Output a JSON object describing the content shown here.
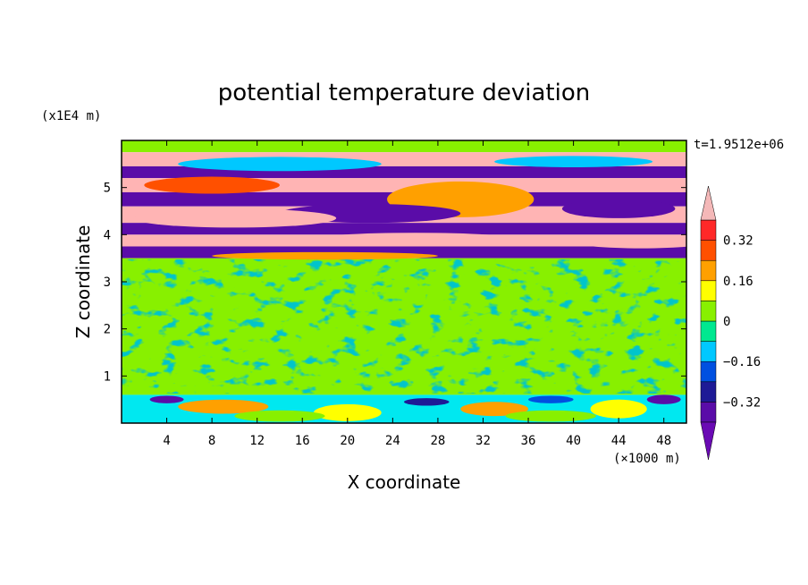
{
  "chart_data": {
    "type": "heatmap",
    "title": "potential temperature deviation",
    "xlabel": "X coordinate",
    "ylabel": "Z coordinate",
    "x_unit": "(×1000 m)",
    "y_unit": "(x1E4 m)",
    "time_label": "t=1.9512e+06",
    "xlim": [
      0,
      50
    ],
    "ylim": [
      0,
      6
    ],
    "x_ticks": [
      4,
      8,
      12,
      16,
      20,
      24,
      28,
      32,
      36,
      40,
      44,
      48
    ],
    "y_ticks": [
      1,
      2,
      3,
      4,
      5
    ],
    "colorbar": {
      "levels": [
        -0.4,
        -0.32,
        -0.24,
        -0.16,
        -0.08,
        0,
        0.08,
        0.16,
        0.24,
        0.32,
        0.4
      ],
      "labeled_ticks": [
        -0.32,
        -0.16,
        0,
        0.16,
        0.32
      ],
      "labels": [
        "−0.32",
        "−0.16",
        "0",
        "0.16",
        "0.32"
      ],
      "colors": [
        "#5a0ca8",
        "#1e1a96",
        "#0050e0",
        "#00c8ff",
        "#00e890",
        "#88f000",
        "#ffff00",
        "#ffa000",
        "#ff5000",
        "#ff2828",
        "#ffb4b4"
      ],
      "extend_low_color": "#6a0ab4",
      "extend_high_color": "#f4b8b8"
    },
    "bands": [
      {
        "y": [
          5.75,
          6.0
        ],
        "level": 0.0,
        "color": "#88f000"
      },
      {
        "y": [
          5.45,
          5.75
        ],
        "level": 0.4,
        "color": "#ffb4b4"
      },
      {
        "y": [
          5.2,
          5.45
        ],
        "level": -0.4,
        "color": "#5a0ca8"
      },
      {
        "y": [
          4.9,
          5.2
        ],
        "level": 0.4,
        "color": "#ffb4b4"
      },
      {
        "y": [
          4.6,
          4.9
        ],
        "level": -0.4,
        "color": "#5a0ca8"
      },
      {
        "y": [
          4.25,
          4.6
        ],
        "level": 0.4,
        "color": "#ffb4b4"
      },
      {
        "y": [
          4.0,
          4.25
        ],
        "level": -0.4,
        "color": "#5a0ca8"
      },
      {
        "y": [
          3.75,
          4.0
        ],
        "level": 0.4,
        "color": "#ffb4b4"
      },
      {
        "y": [
          3.5,
          3.75
        ],
        "level": -0.4,
        "color": "#5a0ca8"
      },
      {
        "y": [
          0.6,
          3.5
        ],
        "level": 0.0,
        "color": "#88f000"
      },
      {
        "y": [
          0.0,
          0.6
        ],
        "level": -0.08,
        "color": "#00e8f0"
      }
    ]
  }
}
